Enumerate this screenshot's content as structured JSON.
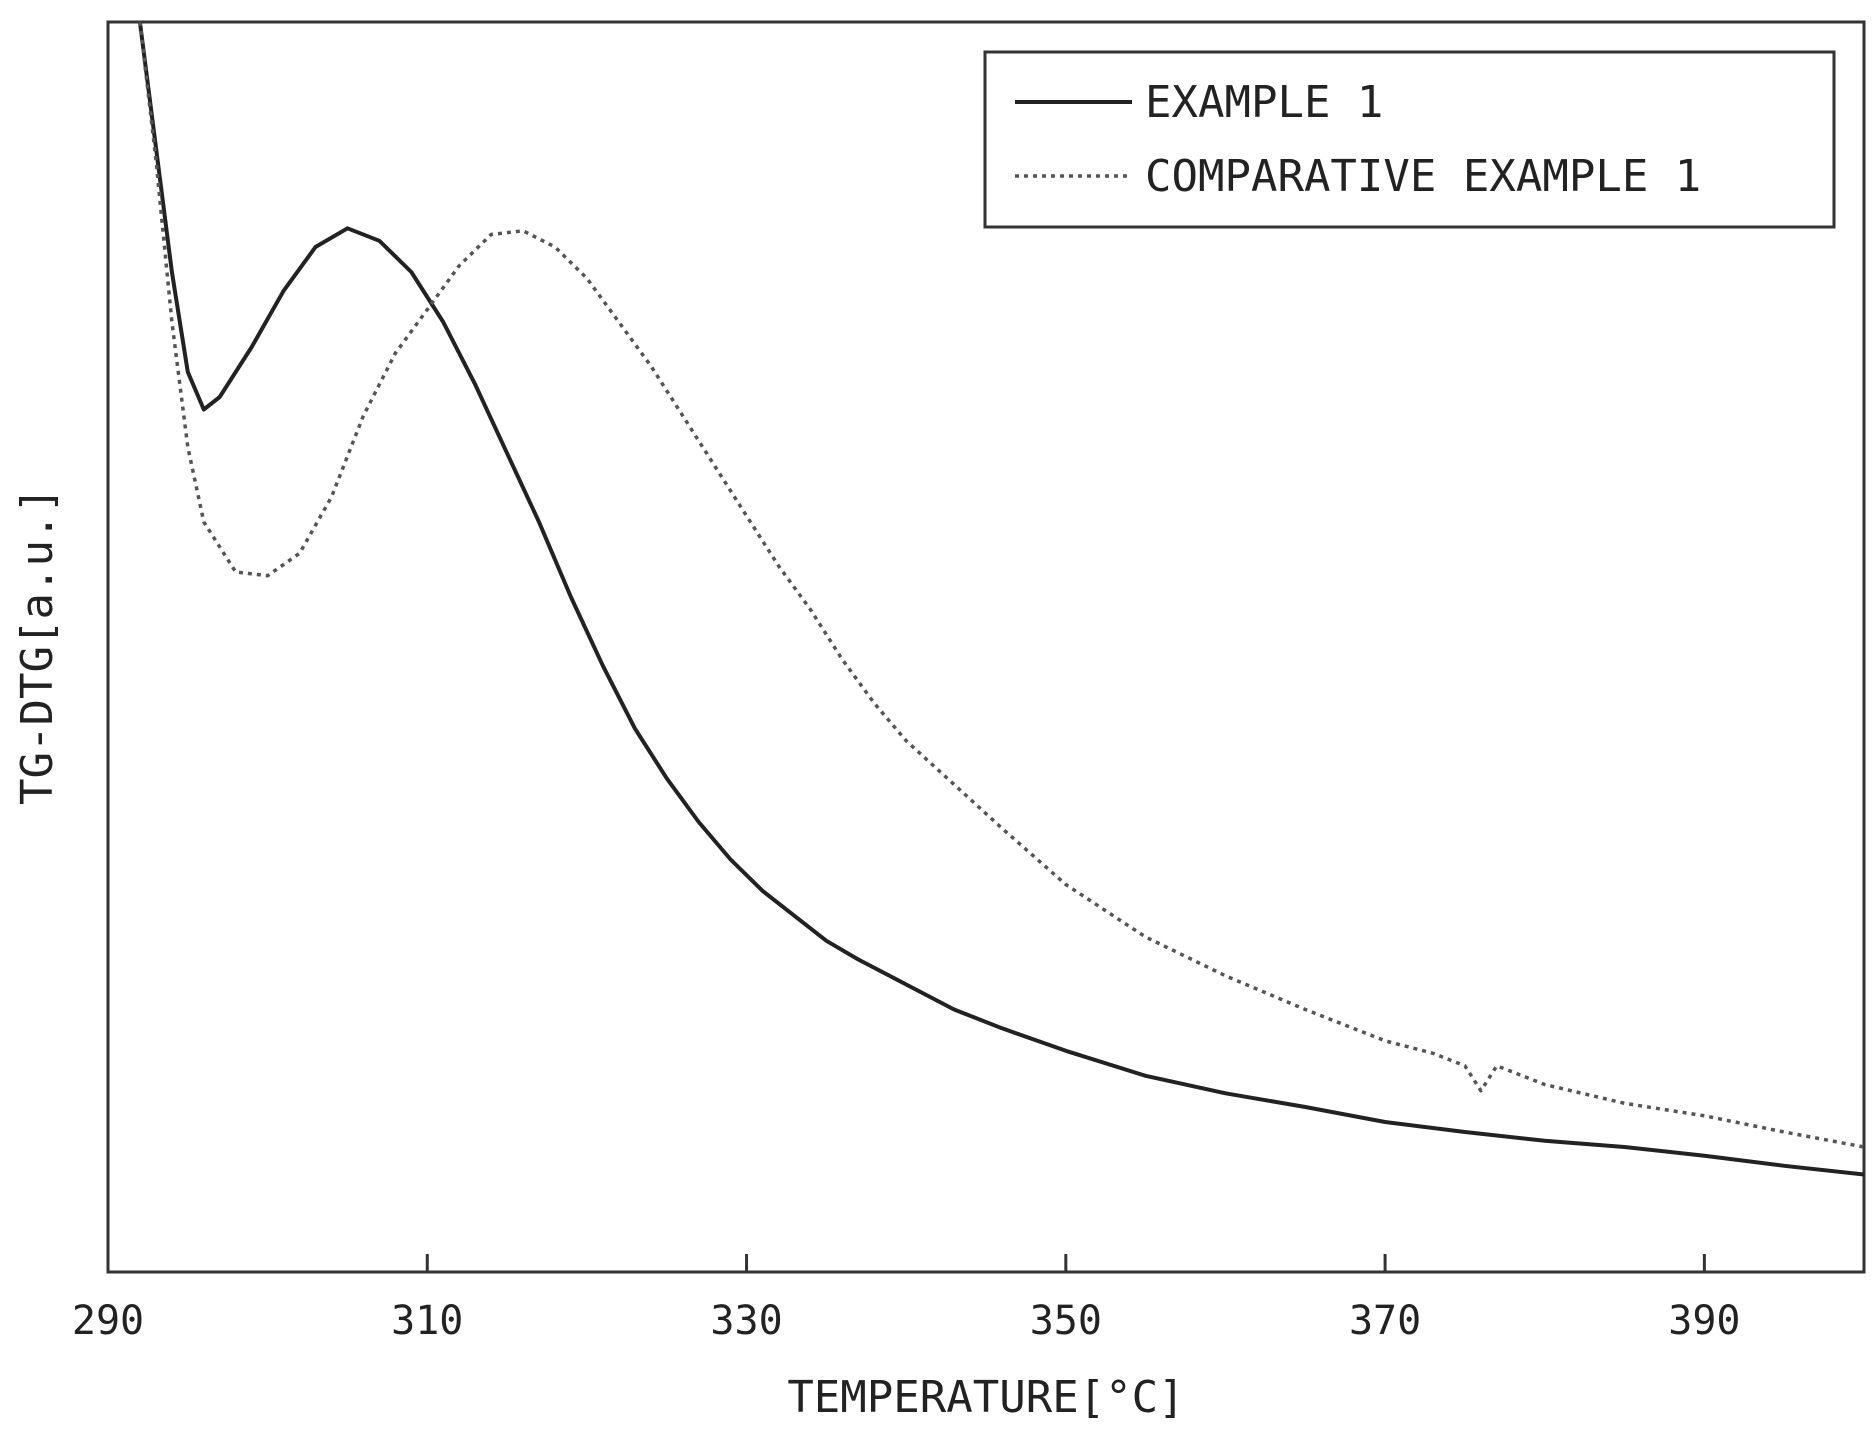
{
  "chart_data": {
    "type": "line",
    "title": "",
    "xlabel": "TEMPERATURE[°C]",
    "ylabel": "TG-DTG[a.u.]",
    "xlim": [
      290,
      400
    ],
    "ylim": [
      0,
      100
    ],
    "x_ticks": [
      290,
      310,
      330,
      350,
      370,
      390
    ],
    "y_ticks_shown": false,
    "grid": false,
    "legend_position": "top-right",
    "series": [
      {
        "name": "EXAMPLE 1",
        "style": "solid",
        "color": "#222222",
        "points": [
          [
            292,
            100
          ],
          [
            293,
            90
          ],
          [
            294,
            80
          ],
          [
            295,
            72
          ],
          [
            296,
            69
          ],
          [
            297,
            70
          ],
          [
            299,
            74
          ],
          [
            301,
            78.5
          ],
          [
            303,
            82
          ],
          [
            305,
            83.5
          ],
          [
            307,
            82.5
          ],
          [
            309,
            80
          ],
          [
            311,
            76
          ],
          [
            313,
            71
          ],
          [
            315,
            65.5
          ],
          [
            317,
            60
          ],
          [
            319,
            54
          ],
          [
            321,
            48.5
          ],
          [
            323,
            43.5
          ],
          [
            325,
            39.5
          ],
          [
            327,
            36
          ],
          [
            329,
            33
          ],
          [
            331,
            30.5
          ],
          [
            333,
            28.5
          ],
          [
            335,
            26.5
          ],
          [
            337,
            25
          ],
          [
            340,
            23
          ],
          [
            343,
            21
          ],
          [
            346,
            19.5
          ],
          [
            350,
            17.7
          ],
          [
            355,
            15.7
          ],
          [
            360,
            14.3
          ],
          [
            365,
            13.2
          ],
          [
            370,
            12
          ],
          [
            375,
            11.2
          ],
          [
            380,
            10.5
          ],
          [
            385,
            10
          ],
          [
            390,
            9.3
          ],
          [
            395,
            8.5
          ],
          [
            400,
            7.8
          ]
        ]
      },
      {
        "name": "COMPARATIVE EXAMPLE 1",
        "style": "dotted",
        "color": "#555555",
        "points": [
          [
            292,
            100
          ],
          [
            293,
            89
          ],
          [
            294,
            76
          ],
          [
            295,
            66
          ],
          [
            296,
            60
          ],
          [
            298,
            56
          ],
          [
            300,
            55.7
          ],
          [
            302,
            57.5
          ],
          [
            304,
            62
          ],
          [
            306,
            68.5
          ],
          [
            308,
            73.5
          ],
          [
            310,
            77
          ],
          [
            312,
            80.5
          ],
          [
            314,
            83
          ],
          [
            316,
            83.3
          ],
          [
            318,
            82
          ],
          [
            320,
            79.5
          ],
          [
            322,
            76
          ],
          [
            324,
            72.5
          ],
          [
            326,
            68.5
          ],
          [
            328,
            64.5
          ],
          [
            330,
            60.5
          ],
          [
            332,
            56.5
          ],
          [
            334,
            53
          ],
          [
            336,
            49
          ],
          [
            338,
            45.5
          ],
          [
            340,
            42.5
          ],
          [
            343,
            39
          ],
          [
            346,
            35.5
          ],
          [
            350,
            31
          ],
          [
            355,
            26.8
          ],
          [
            360,
            23.7
          ],
          [
            365,
            21
          ],
          [
            370,
            18.5
          ],
          [
            373,
            17.5
          ],
          [
            375,
            16.5
          ],
          [
            376,
            14.5
          ],
          [
            377,
            16.5
          ],
          [
            380,
            15
          ],
          [
            385,
            13.5
          ],
          [
            390,
            12.5
          ],
          [
            395,
            11.2
          ],
          [
            400,
            10
          ]
        ]
      }
    ]
  }
}
